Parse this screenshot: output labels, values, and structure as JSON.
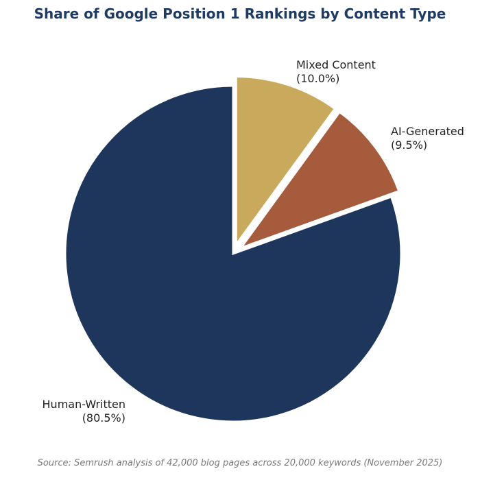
{
  "chart_data": {
    "type": "pie",
    "title": "Share of Google Position 1 Rankings by Content Type",
    "categories": [
      "Human-Written",
      "Mixed Content",
      "AI-Generated"
    ],
    "values": [
      80.5,
      10.0,
      9.5
    ],
    "value_labels": [
      "(80.5%)",
      "(10.0%)",
      "(9.5%)"
    ],
    "colors": [
      "#1f365c",
      "#c9a95c",
      "#a65c3c"
    ],
    "exploded": [
      false,
      true,
      true
    ],
    "start_angle": "12 o'clock",
    "direction": "clockwise from Mixed Content",
    "source": "Source: Semrush analysis of 42,000 blog pages across 20,000 keywords (November 2025)"
  }
}
